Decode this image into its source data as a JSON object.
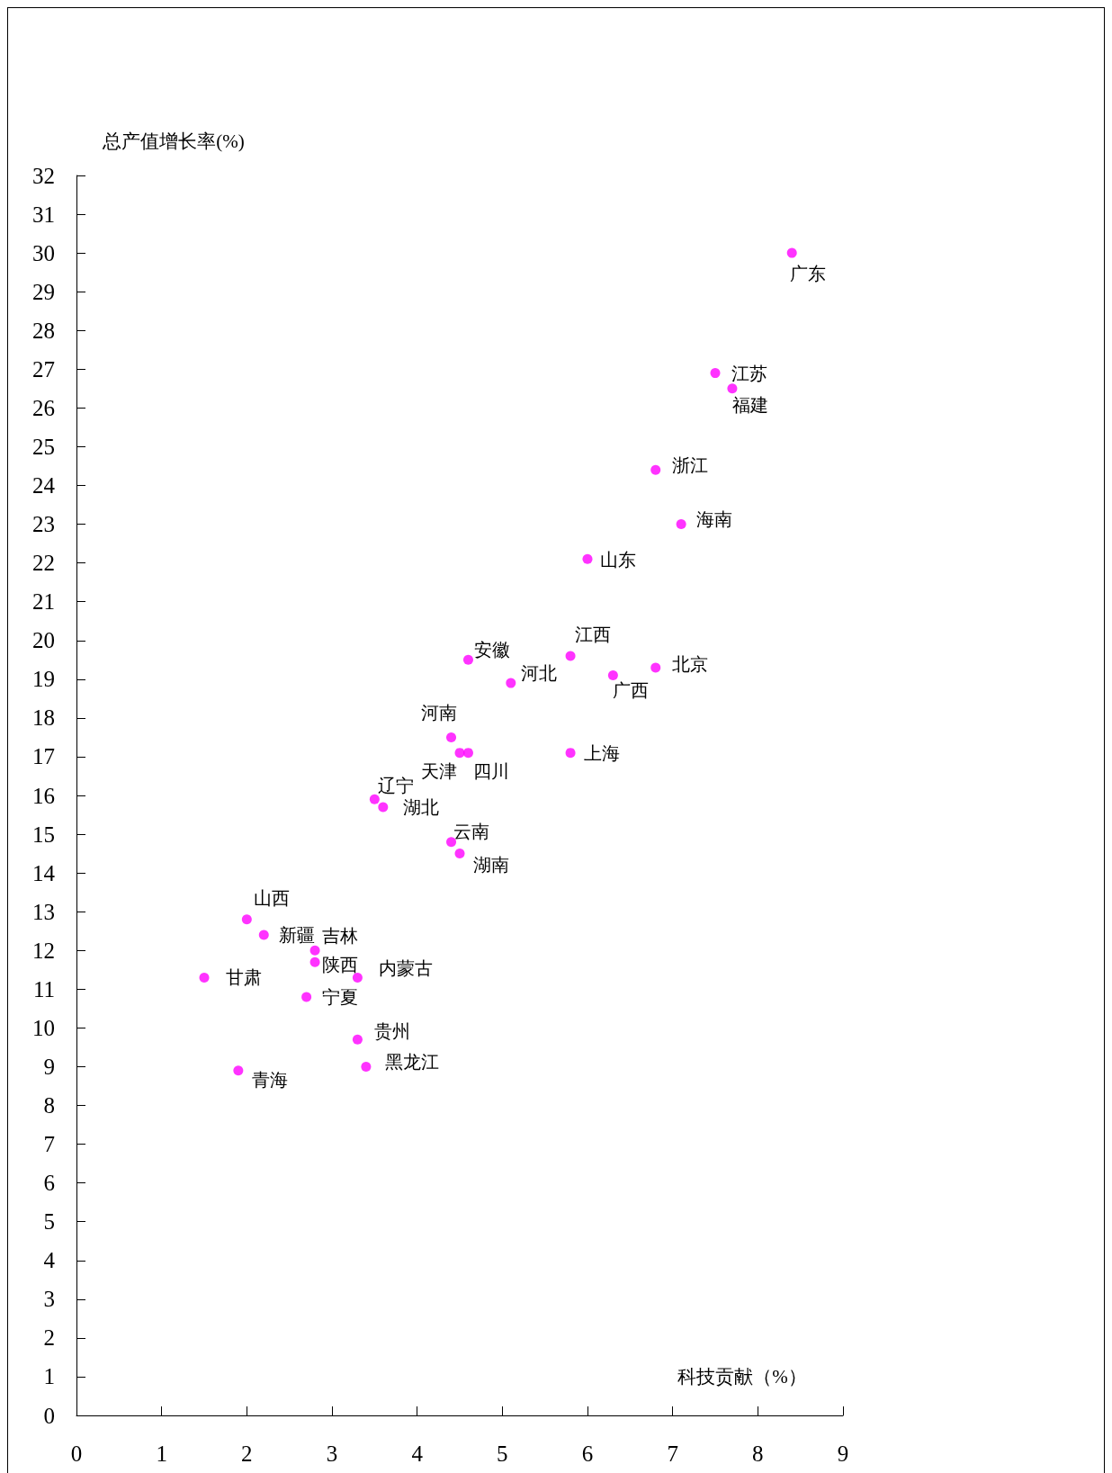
{
  "chart_data": {
    "type": "scatter",
    "xlabel": "科技贡献（%）",
    "ylabel": "总产值增长率(%)",
    "x": [
      8.4,
      7.5,
      7.7,
      6.8,
      7.1,
      6.0,
      5.8,
      6.8,
      6.3,
      4.6,
      5.1,
      4.4,
      4.5,
      4.6,
      5.8,
      3.5,
      3.6,
      4.4,
      4.5,
      2.0,
      2.2,
      2.8,
      2.8,
      3.3,
      1.5,
      2.7,
      3.3,
      3.4,
      1.9
    ],
    "values": [
      30.0,
      26.9,
      26.5,
      24.4,
      23.0,
      22.1,
      19.6,
      19.3,
      19.1,
      19.5,
      18.9,
      17.5,
      17.1,
      17.1,
      17.1,
      15.9,
      15.7,
      14.8,
      14.5,
      12.8,
      12.4,
      12.0,
      11.7,
      11.3,
      11.3,
      10.8,
      9.7,
      9.0,
      8.9
    ],
    "color": "#ff00ff",
    "marker": "circle",
    "grid": false,
    "xlim": [
      0,
      9
    ],
    "xticks": [
      0,
      1,
      2,
      3,
      4,
      5,
      6,
      7,
      8,
      9
    ],
    "ylim": [
      0,
      32
    ],
    "yticks": [
      0,
      1,
      2,
      3,
      4,
      5,
      6,
      7,
      8,
      9,
      10,
      11,
      12,
      13,
      14,
      15,
      16,
      17,
      18,
      19,
      20,
      21,
      22,
      23,
      24,
      25,
      26,
      27,
      28,
      29,
      30,
      31,
      32
    ],
    "annotations": [
      {
        "text": "广东",
        "x": 8.4,
        "y": 30.0
      },
      {
        "text": "江苏",
        "x": 7.5,
        "y": 26.9
      },
      {
        "text": "福建",
        "x": 7.7,
        "y": 26.5
      },
      {
        "text": "浙江",
        "x": 6.8,
        "y": 24.4
      },
      {
        "text": "海南",
        "x": 7.1,
        "y": 23.0
      },
      {
        "text": "山东",
        "x": 6.0,
        "y": 22.1
      },
      {
        "text": "江西",
        "x": 5.8,
        "y": 19.6
      },
      {
        "text": "北京",
        "x": 6.8,
        "y": 19.3
      },
      {
        "text": "广西",
        "x": 6.3,
        "y": 19.1
      },
      {
        "text": "安徽",
        "x": 4.6,
        "y": 19.5
      },
      {
        "text": "河北",
        "x": 5.1,
        "y": 18.9
      },
      {
        "text": "河南",
        "x": 4.4,
        "y": 17.5
      },
      {
        "text": "天津",
        "x": 4.5,
        "y": 17.1
      },
      {
        "text": "四川",
        "x": 4.6,
        "y": 17.1
      },
      {
        "text": "上海",
        "x": 5.8,
        "y": 17.1
      },
      {
        "text": "辽宁",
        "x": 3.5,
        "y": 15.9
      },
      {
        "text": "湖北",
        "x": 3.6,
        "y": 15.7
      },
      {
        "text": "云南",
        "x": 4.4,
        "y": 14.8
      },
      {
        "text": "湖南",
        "x": 4.5,
        "y": 14.5
      },
      {
        "text": "山西",
        "x": 2.0,
        "y": 12.8
      },
      {
        "text": "新疆",
        "x": 2.2,
        "y": 12.4
      },
      {
        "text": "吉林",
        "x": 2.8,
        "y": 12.0
      },
      {
        "text": "陕西",
        "x": 2.8,
        "y": 11.7
      },
      {
        "text": "内蒙古",
        "x": 3.3,
        "y": 11.3
      },
      {
        "text": "甘肃",
        "x": 1.5,
        "y": 11.3
      },
      {
        "text": "宁夏",
        "x": 2.7,
        "y": 10.8
      },
      {
        "text": "贵州",
        "x": 3.3,
        "y": 9.7
      },
      {
        "text": "黑龙江",
        "x": 3.4,
        "y": 9.0
      },
      {
        "text": "青海",
        "x": 1.9,
        "y": 8.9
      }
    ]
  }
}
